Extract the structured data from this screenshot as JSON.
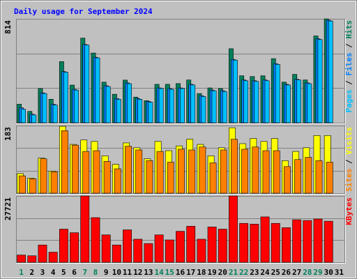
{
  "title": "Daily usage for September 2024",
  "categories": [
    "1",
    "2",
    "3",
    "4",
    "5",
    "6",
    "7",
    "8",
    "9",
    "10",
    "11",
    "12",
    "13",
    "14",
    "15",
    "16",
    "17",
    "18",
    "19",
    "20",
    "21",
    "22",
    "23",
    "24",
    "25",
    "26",
    "27",
    "28",
    "29",
    "30",
    "31"
  ],
  "category_colors": [
    "#00805c",
    "#000000",
    "#000000",
    "#000000",
    "#000000",
    "#000000",
    "#00805c",
    "#00805c",
    "#000000",
    "#000000",
    "#000000",
    "#000000",
    "#000000",
    "#00805c",
    "#00805c",
    "#000000",
    "#000000",
    "#000000",
    "#000000",
    "#000000",
    "#00805c",
    "#00805c",
    "#000000",
    "#000000",
    "#000000",
    "#000000",
    "#000000",
    "#00805c",
    "#00805c",
    "#000000",
    "#000000"
  ],
  "chart_data": [
    {
      "type": "bar",
      "ylim": [
        0,
        814
      ],
      "yticks": [
        814
      ],
      "series": [
        {
          "name": "Hits",
          "color": "#00805c",
          "values": [
            145,
            89,
            268,
            184,
            479,
            295,
            663,
            546,
            318,
            223,
            334,
            201,
            173,
            301,
            301,
            307,
            335,
            229,
            273,
            268,
            580,
            368,
            362,
            368,
            502,
            318,
            379,
            335,
            680,
            814,
            null
          ]
        },
        {
          "name": "Files",
          "color": "#0080ff",
          "values": [
            117,
            67,
            234,
            145,
            401,
            262,
            613,
            513,
            290,
            190,
            312,
            190,
            167,
            273,
            268,
            273,
            301,
            212,
            256,
            251,
            496,
            335,
            329,
            335,
            463,
            301,
            340,
            312,
            658,
            803,
            null
          ]
        },
        {
          "name": "Pages",
          "color": "#00c0ff",
          "values": [
            106,
            61,
            229,
            139,
            396,
            256,
            608,
            508,
            284,
            184,
            306,
            184,
            161,
            268,
            262,
            268,
            296,
            206,
            251,
            245,
            491,
            329,
            324,
            329,
            457,
            296,
            335,
            306,
            652,
            797,
            null
          ]
        }
      ]
    },
    {
      "type": "bar",
      "ylim": [
        0,
        183
      ],
      "yticks": [
        183
      ],
      "series": [
        {
          "name": "Visits",
          "color": "#ffff00",
          "values": [
            53,
            41,
            95,
            60,
            181,
            132,
            144,
            140,
            101,
            78,
            136,
            123,
            93,
            140,
            115,
            128,
            146,
            132,
            101,
            123,
            177,
            134,
            148,
            140,
            148,
            88,
            113,
            123,
            156,
            156,
            null
          ]
        },
        {
          "name": "Sites",
          "color": "#ff8000",
          "values": [
            47,
            39,
            93,
            58,
            169,
            130,
            113,
            115,
            86,
            66,
            127,
            117,
            88,
            113,
            84,
            119,
            117,
            125,
            82,
            117,
            146,
            119,
            125,
            115,
            115,
            72,
            91,
            97,
            88,
            84,
            null
          ]
        }
      ]
    },
    {
      "type": "bar",
      "ylim": [
        0,
        27721
      ],
      "yticks": [
        27721
      ],
      "series": [
        {
          "name": "KBytes",
          "color": "#ff0000",
          "values": [
            3013,
            2712,
            7232,
            4218,
            13861,
            12354,
            27721,
            18681,
            11450,
            7232,
            13559,
            9642,
            7834,
            11450,
            9341,
            12957,
            15066,
            9642,
            14764,
            13861,
            27721,
            16271,
            15970,
            18983,
            16271,
            14463,
            17778,
            17476,
            18079,
            17175,
            null
          ]
        }
      ]
    }
  ]
}
